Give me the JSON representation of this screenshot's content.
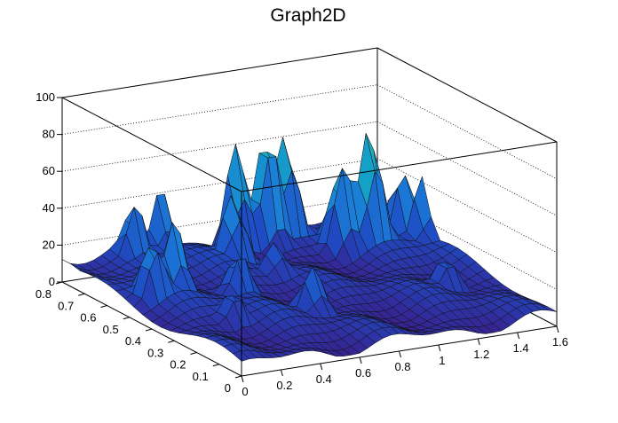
{
  "chart_data": {
    "type": "surface",
    "title": "Graph2D",
    "xlabel": "",
    "ylabel": "",
    "zlabel": "",
    "x_axis": {
      "range": [
        0,
        1.6
      ],
      "ticks": [
        "0",
        "0.2",
        "0.4",
        "0.6",
        "0.8",
        "1",
        "1.2",
        "1.4",
        "1.6"
      ]
    },
    "y_axis": {
      "range": [
        0,
        0.8
      ],
      "ticks": [
        "0",
        "0.1",
        "0.2",
        "0.3",
        "0.4",
        "0.5",
        "0.6",
        "0.7",
        "0.8"
      ]
    },
    "z_axis": {
      "range": [
        0,
        100
      ],
      "ticks": [
        "0",
        "20",
        "40",
        "60",
        "80",
        "100"
      ]
    },
    "grid": true,
    "colormap": [
      "#3a1d8a",
      "#1e4cc4",
      "#1a7ed8",
      "#14a6c4",
      "#3cbc96",
      "#a4c25a",
      "#f0c832"
    ],
    "peaks": [
      {
        "x": 0.33,
        "y": 0.77,
        "z": 38
      },
      {
        "x": 0.5,
        "y": 0.8,
        "z": 40
      },
      {
        "x": 0.72,
        "y": 0.67,
        "z": 42
      },
      {
        "x": 0.88,
        "y": 0.8,
        "z": 58
      },
      {
        "x": 1.02,
        "y": 0.78,
        "z": 65
      },
      {
        "x": 1.12,
        "y": 0.79,
        "z": 60
      },
      {
        "x": 1.25,
        "y": 0.65,
        "z": 52
      },
      {
        "x": 1.37,
        "y": 0.63,
        "z": 70
      },
      {
        "x": 1.6,
        "y": 0.6,
        "z": 41
      },
      {
        "x": 0.12,
        "y": 0.5,
        "z": 38
      },
      {
        "x": 0.25,
        "y": 0.52,
        "z": 45
      },
      {
        "x": 0.5,
        "y": 0.45,
        "z": 28
      },
      {
        "x": 0.8,
        "y": 0.55,
        "z": 22
      },
      {
        "x": 1.55,
        "y": 0.65,
        "z": 42
      },
      {
        "x": 0.3,
        "y": 0.3,
        "z": 20
      },
      {
        "x": 0.68,
        "y": 0.28,
        "z": 28
      },
      {
        "x": 1.38,
        "y": 0.3,
        "z": 20
      },
      {
        "x": 0.0,
        "y": 0.78,
        "z": 12
      }
    ],
    "baseline": 6
  }
}
